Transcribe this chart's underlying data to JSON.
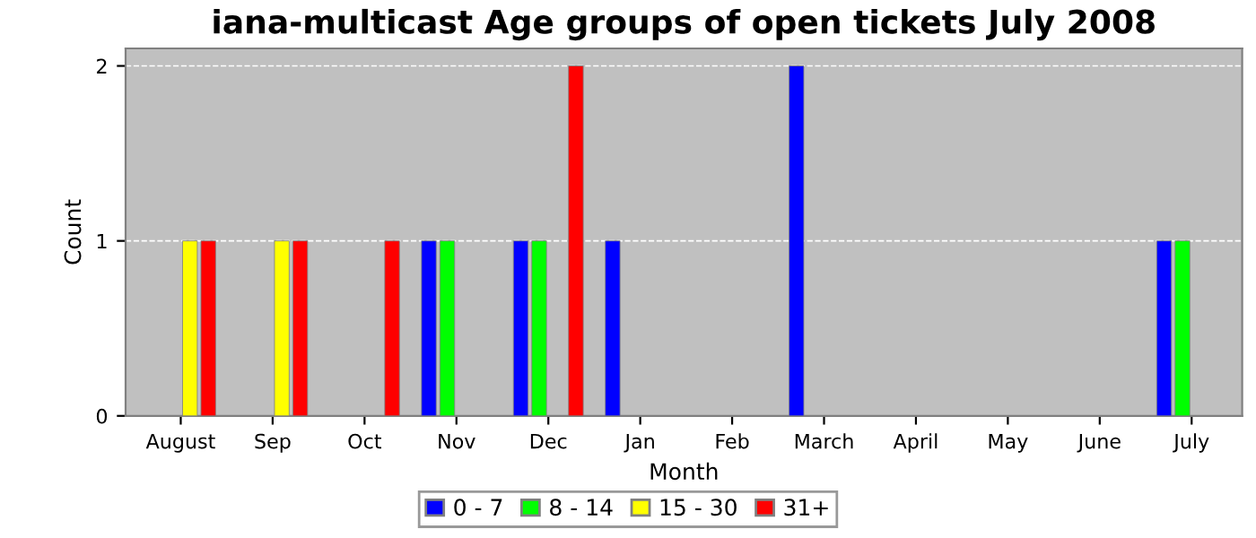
{
  "chart_data": {
    "type": "bar",
    "title": "iana-multicast Age groups of open tickets July 2008",
    "xlabel": "Month",
    "ylabel": "Count",
    "categories": [
      "August",
      "Sep",
      "Oct",
      "Nov",
      "Dec",
      "Jan",
      "Feb",
      "March",
      "April",
      "May",
      "June",
      "July"
    ],
    "series": [
      {
        "name": "0 - 7",
        "color": "#0000ff",
        "values": [
          0,
          0,
          0,
          1,
          1,
          1,
          0,
          2,
          0,
          0,
          0,
          1
        ]
      },
      {
        "name": "8 - 14",
        "color": "#00ff00",
        "values": [
          0,
          0,
          0,
          1,
          1,
          0,
          0,
          0,
          0,
          0,
          0,
          1
        ]
      },
      {
        "name": "15 - 30",
        "color": "#ffff00",
        "values": [
          1,
          1,
          0,
          0,
          0,
          0,
          0,
          0,
          0,
          0,
          0,
          0
        ]
      },
      {
        "name": "31+",
        "color": "#ff0000",
        "values": [
          1,
          1,
          1,
          0,
          2,
          0,
          0,
          0,
          0,
          0,
          0,
          0
        ]
      }
    ],
    "ylim": [
      0,
      2.1
    ],
    "yticks": [
      0,
      1,
      2
    ],
    "grid": "y",
    "legend": "bottom"
  }
}
